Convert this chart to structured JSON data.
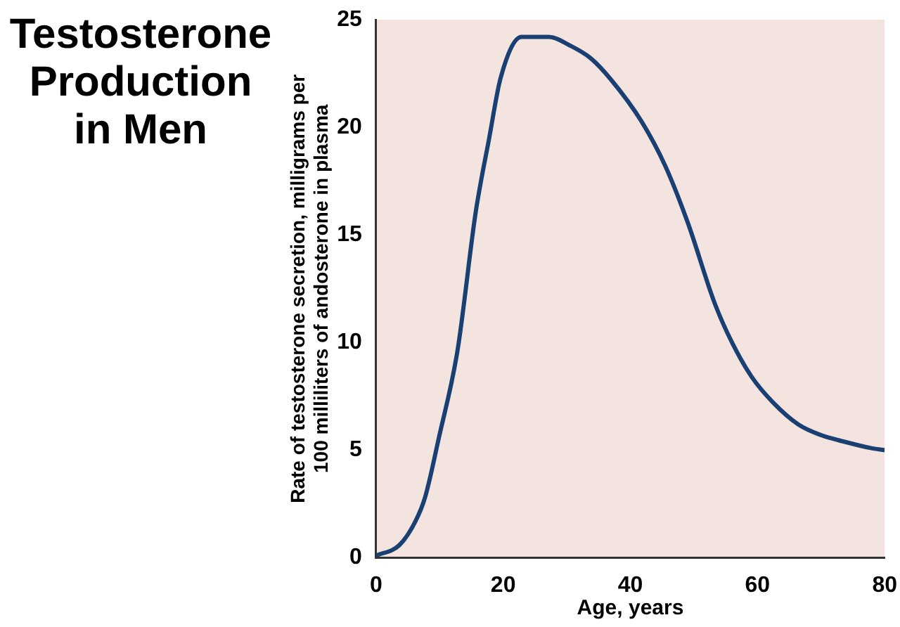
{
  "chart_data": {
    "type": "line",
    "title": "Testosterone\nProduction\nin Men",
    "xlabel": "Age, years",
    "ylabel": "Rate of testosterone secretion, milligrams per\n100 milliliters of andosterone in plasma",
    "x": [
      0,
      3.7,
      6.2,
      7.7,
      9.9,
      12.8,
      15.7,
      17.8,
      19.6,
      22.9,
      27.2,
      30.5,
      33.8,
      37,
      41.7,
      45.5,
      49,
      53.3,
      56,
      59.1,
      62.5,
      66.4,
      70,
      73.6,
      77.8,
      80
    ],
    "series": [
      {
        "color": "#1a3f73",
        "values": [
          0.1,
          0.6,
          1.7,
          2.8,
          5.6,
          9.6,
          16.1,
          19.5,
          22.3,
          24.2,
          24.2,
          23.8,
          23.2,
          22.2,
          20.3,
          18.2,
          15.6,
          11.8,
          10,
          8.4,
          7.2,
          6.2,
          5.7,
          5.4,
          5.1,
          5.0
        ]
      }
    ],
    "xlim": [
      0,
      80
    ],
    "xticks": [
      0,
      20,
      40,
      60,
      80
    ],
    "ylim": [
      0,
      25
    ],
    "yticks": [
      0,
      5,
      10,
      15,
      20,
      25
    ],
    "grid": false,
    "legend": false,
    "marker": "none",
    "line_style": "solid"
  }
}
